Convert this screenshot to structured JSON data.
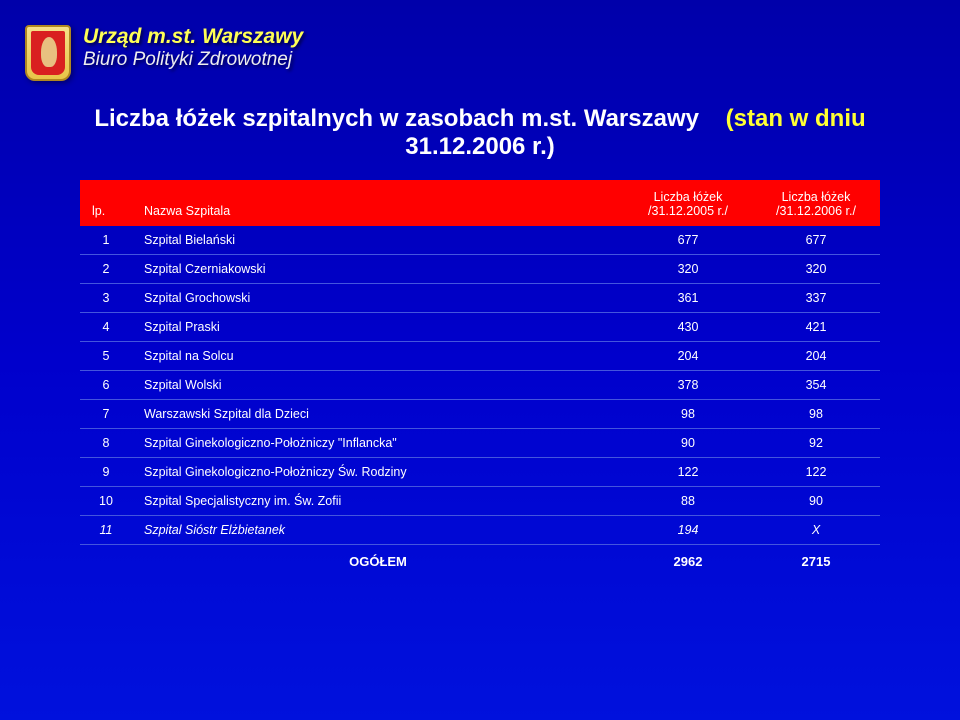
{
  "header": {
    "line1": "Urząd m.st. Warszawy",
    "line2": "Biuro Polityki Zdrowotnej"
  },
  "title": {
    "white": "Liczba łóżek szpitalnych w zasobach m.st. Warszawy",
    "yellow": "(stan w dniu",
    "line2_white": "31.12.2006 r.)"
  },
  "columns": {
    "lp": "lp.",
    "name": "Nazwa Szpitala",
    "v1a": "Liczba łóżek",
    "v1b": "/31.12.2005 r./",
    "v2a": "Liczba łóżek",
    "v2b": "/31.12.2006 r./"
  },
  "rows": [
    {
      "lp": "1",
      "name": "Szpital Bielański",
      "v1": "677",
      "v2": "677",
      "italic": false
    },
    {
      "lp": "2",
      "name": "Szpital Czerniakowski",
      "v1": "320",
      "v2": "320",
      "italic": false
    },
    {
      "lp": "3",
      "name": "Szpital Grochowski",
      "v1": "361",
      "v2": "337",
      "italic": false
    },
    {
      "lp": "4",
      "name": "Szpital Praski",
      "v1": "430",
      "v2": "421",
      "italic": false
    },
    {
      "lp": "5",
      "name": "Szpital na Solcu",
      "v1": "204",
      "v2": "204",
      "italic": false
    },
    {
      "lp": "6",
      "name": "Szpital Wolski",
      "v1": "378",
      "v2": "354",
      "italic": false
    },
    {
      "lp": "7",
      "name": "Warszawski Szpital dla Dzieci",
      "v1": "98",
      "v2": "98",
      "italic": false
    },
    {
      "lp": "8",
      "name": "Szpital Ginekologiczno-Położniczy \"Inflancka\"",
      "v1": "90",
      "v2": "92",
      "italic": false
    },
    {
      "lp": "9",
      "name": "Szpital Ginekologiczno-Położniczy Św. Rodziny",
      "v1": "122",
      "v2": "122",
      "italic": false
    },
    {
      "lp": "10",
      "name": "Szpital Specjalistyczny im. Św. Zofii",
      "v1": "88",
      "v2": "90",
      "italic": false
    },
    {
      "lp": "11",
      "name": "Szpital Sióstr Elżbietanek",
      "v1": "194",
      "v2": "X",
      "italic": true
    }
  ],
  "total": {
    "label": "OGÓŁEM",
    "v1": "2962",
    "v2": "2715"
  },
  "styling": {
    "background_gradient": [
      "#0000aa",
      "#0000cc",
      "#0011dd"
    ],
    "header_red": "#ff0000",
    "row_border": "#4455dd",
    "title_accent": "#ffff33",
    "header_accent": "#ffff55",
    "text_color": "#ffffff",
    "font_family": "Arial",
    "title_fontsize": 24,
    "header_fontsize": 21,
    "table_fontsize": 12.5
  }
}
